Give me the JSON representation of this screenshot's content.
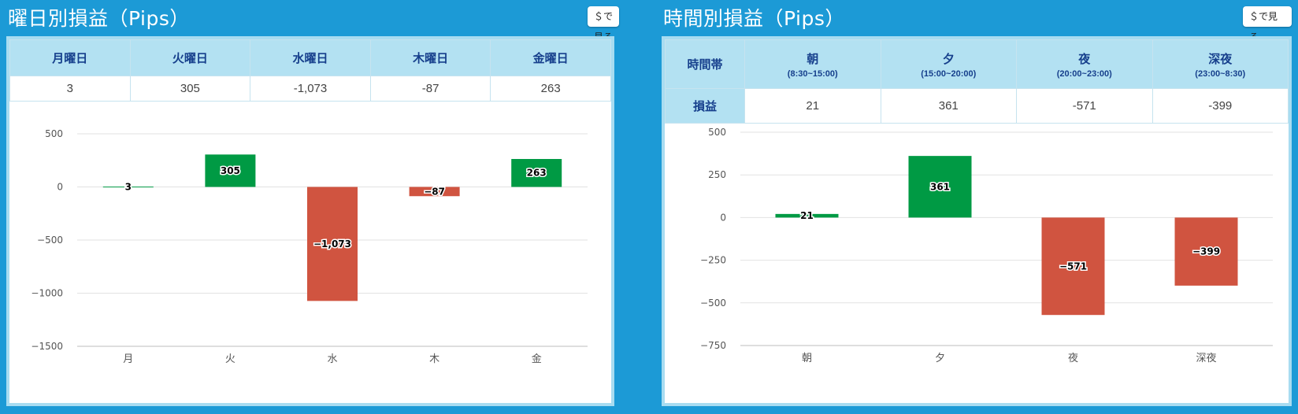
{
  "left_panel": {
    "title": "曜日別損益（Pips）",
    "usd_button": "＄で見る",
    "table": {
      "headers": [
        "月曜日",
        "火曜日",
        "水曜日",
        "木曜日",
        "金曜日"
      ],
      "values": [
        "3",
        "305",
        "-1,073",
        "-87",
        "263"
      ]
    }
  },
  "right_panel": {
    "title": "時間別損益（Pips）",
    "usd_button": "＄で見る",
    "table": {
      "corner_header": "時間帯",
      "row_label": "損益",
      "headers": [
        {
          "name": "朝",
          "range": "(8:30~15:00)"
        },
        {
          "name": "夕",
          "range": "(15:00~20:00)"
        },
        {
          "name": "夜",
          "range": "(20:00~23:00)"
        },
        {
          "name": "深夜",
          "range": "(23:00~8:30)"
        }
      ],
      "values": [
        "21",
        "361",
        "-571",
        "-399"
      ]
    }
  },
  "colors": {
    "positive": "#009a44",
    "negative": "#d05440",
    "grid": "#e2e2e2"
  },
  "chart_data": [
    {
      "type": "bar",
      "categories": [
        "月",
        "火",
        "水",
        "木",
        "金"
      ],
      "values": [
        3,
        305,
        -1073,
        -87,
        263
      ],
      "data_labels": [
        "3",
        "305",
        "−1,073",
        "−87",
        "263"
      ],
      "yticks": [
        500,
        0,
        -500,
        -1000,
        -1500
      ],
      "ytick_labels": [
        "500",
        "0",
        "−500",
        "−1000",
        "−1500"
      ],
      "ylim": [
        -1500,
        500
      ],
      "grid": true
    },
    {
      "type": "bar",
      "categories": [
        "朝",
        "夕",
        "夜",
        "深夜"
      ],
      "values": [
        21,
        361,
        -571,
        -399
      ],
      "data_labels": [
        "21",
        "361",
        "−571",
        "−399"
      ],
      "yticks": [
        500,
        250,
        0,
        -250,
        -500,
        -750
      ],
      "ytick_labels": [
        "500",
        "250",
        "0",
        "−250",
        "−500",
        "−750"
      ],
      "ylim": [
        -750,
        500
      ],
      "grid": true
    }
  ]
}
